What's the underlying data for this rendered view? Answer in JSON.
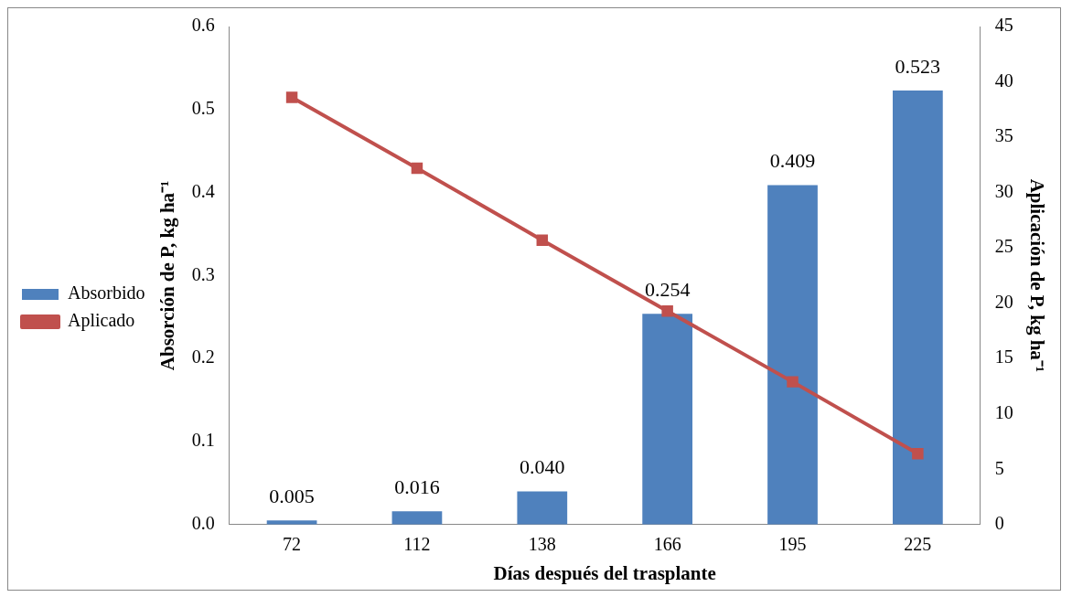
{
  "chart_data": {
    "type": "bar",
    "xlabel": "Días después del trasplante",
    "ylabel": "Absorción de P, kg ha⁻¹",
    "y2label": "Aplicación de P, kg ha⁻¹",
    "categories": [
      "72",
      "112",
      "138",
      "166",
      "195",
      "225"
    ],
    "series": [
      {
        "name": "Absorbido",
        "color": "#4f81bd",
        "values": [
          0.005,
          0.016,
          0.04,
          0.254,
          0.409,
          0.523
        ],
        "value_labels": [
          "0.005",
          "0.016",
          "0.040",
          "0.254",
          "0.409",
          "0.523"
        ]
      },
      {
        "name": "Aplicado",
        "type": "line",
        "axis": "y2",
        "color": "#c0504d",
        "marker": "square",
        "values": [
          38.6,
          32.2,
          25.7,
          19.3,
          12.9,
          6.4
        ]
      }
    ],
    "ylim": [
      0,
      0.6
    ],
    "yticks": [
      {
        "value": 0,
        "label": "0.0"
      },
      {
        "value": 0.1,
        "label": "0.1"
      },
      {
        "value": 0.2,
        "label": "0.2"
      },
      {
        "value": 0.3,
        "label": "0.3"
      },
      {
        "value": 0.4,
        "label": "0.4"
      },
      {
        "value": 0.5,
        "label": "0.5"
      },
      {
        "value": 0.6,
        "label": "0.6"
      }
    ],
    "y2lim": [
      0,
      45
    ],
    "y2ticks": [
      0,
      5,
      10,
      15,
      20,
      25,
      30,
      35,
      40,
      45
    ],
    "grid": false,
    "legend": "left"
  }
}
